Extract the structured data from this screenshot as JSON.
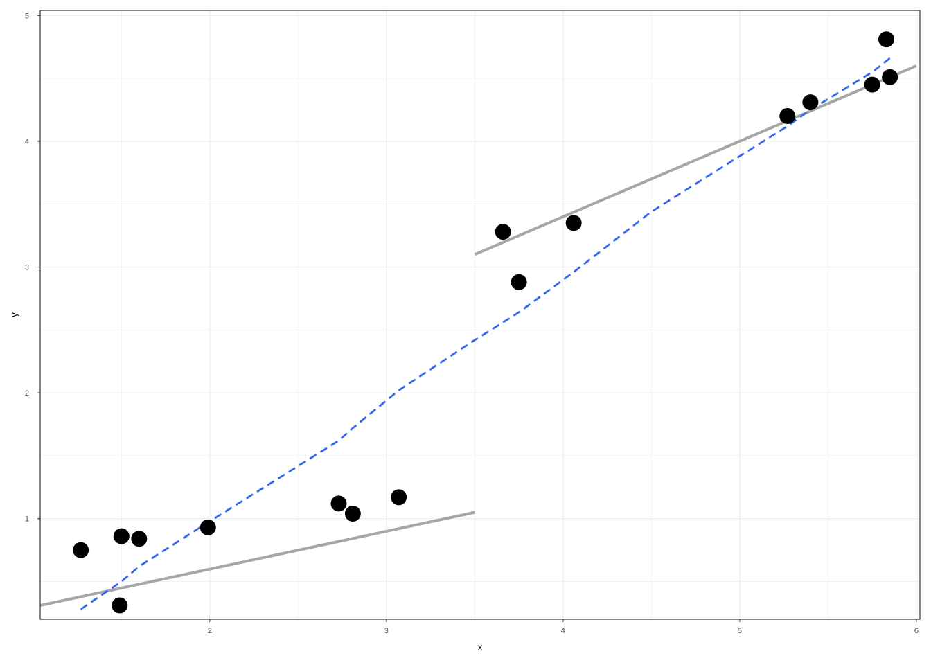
{
  "chart_data": {
    "type": "scatter",
    "title": "",
    "xlabel": "x",
    "ylabel": "y",
    "xlim": [
      1.04,
      6.02
    ],
    "ylim": [
      0.2,
      5.04
    ],
    "x_ticks": [
      2,
      3,
      4,
      5,
      6
    ],
    "x_tick_labels": [
      "2",
      "3",
      "4",
      "5",
      "6"
    ],
    "y_ticks": [
      1,
      2,
      3,
      4,
      5
    ],
    "y_tick_labels": [
      "1",
      "2",
      "3",
      "4",
      "5"
    ],
    "grid": true,
    "legend": "none",
    "points": [
      {
        "x": 1.27,
        "y": 0.75
      },
      {
        "x": 1.49,
        "y": 0.31
      },
      {
        "x": 1.5,
        "y": 0.86
      },
      {
        "x": 1.6,
        "y": 0.84
      },
      {
        "x": 1.99,
        "y": 0.93
      },
      {
        "x": 2.73,
        "y": 1.12
      },
      {
        "x": 2.81,
        "y": 1.04
      },
      {
        "x": 3.07,
        "y": 1.17
      },
      {
        "x": 3.66,
        "y": 3.28
      },
      {
        "x": 3.75,
        "y": 2.88
      },
      {
        "x": 4.06,
        "y": 3.35
      },
      {
        "x": 5.27,
        "y": 4.2
      },
      {
        "x": 5.4,
        "y": 4.31
      },
      {
        "x": 5.75,
        "y": 4.45
      },
      {
        "x": 5.83,
        "y": 4.81
      },
      {
        "x": 5.85,
        "y": 4.51
      }
    ],
    "lines": [
      {
        "style": "solid",
        "color": "#a6a6a6",
        "x": [
          1.04,
          3.5
        ],
        "y": [
          0.31,
          1.05
        ]
      },
      {
        "style": "solid",
        "color": "#a6a6a6",
        "x": [
          3.5,
          6.0
        ],
        "y": [
          3.1,
          4.6
        ]
      },
      {
        "style": "dashed",
        "color": "#3366ee",
        "x": [
          1.27,
          1.5,
          1.6,
          1.99,
          2.73,
          2.81,
          3.07,
          3.5,
          3.66,
          3.75,
          4.06,
          4.5,
          5.27,
          5.4,
          5.75,
          5.85
        ],
        "y": [
          0.28,
          0.5,
          0.62,
          0.97,
          1.62,
          1.72,
          2.02,
          2.42,
          2.56,
          2.64,
          2.96,
          3.44,
          4.12,
          4.25,
          4.55,
          4.66
        ]
      }
    ],
    "colors": {
      "point": "#000000",
      "fit_line": "#a6a6a6",
      "smooth_line": "#3366ee",
      "grid": "#ebebeb",
      "panel_border": "#333333",
      "tick_text": "#4d4d4d"
    }
  }
}
